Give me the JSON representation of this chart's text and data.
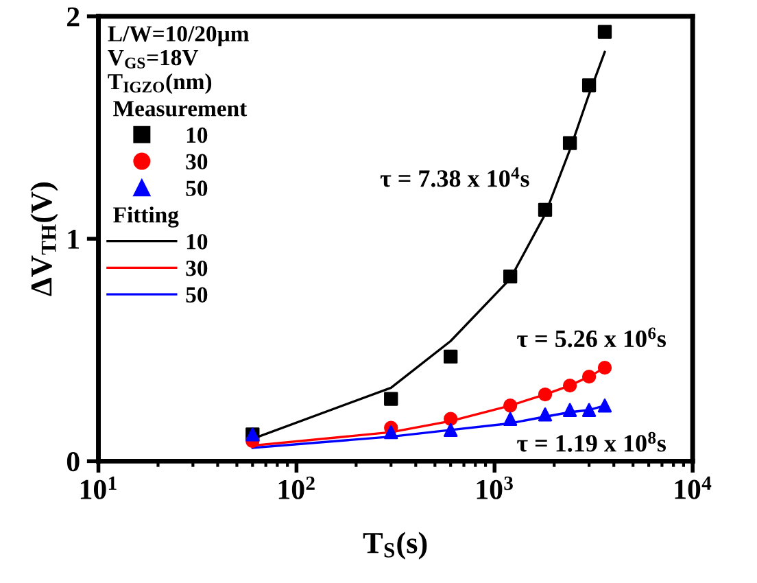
{
  "chart_data": {
    "type": "scatter",
    "xlabel": "T$_{S}$(s)",
    "ylabel": "ΔV$_{TH}$(V)",
    "log": "x",
    "xlim": [
      10,
      10000
    ],
    "xticks": [
      {
        "value": 10,
        "label": "10$^{1}$"
      },
      {
        "value": 100,
        "label": "10$^{2}$"
      },
      {
        "value": 1000,
        "label": "10$^{3}$"
      },
      {
        "value": 10000,
        "label": "10$^{4}$"
      }
    ],
    "ylim": [
      0,
      2
    ],
    "yticks": [
      0,
      1,
      2
    ],
    "grid": false,
    "legend": "top left",
    "legend_title": "T$_{IGZO}$(nm)",
    "x": [
      60,
      300,
      600,
      1200,
      1800,
      2400,
      3000,
      3600
    ],
    "series": [
      {
        "name": "10",
        "marker": "square",
        "color": "#000000",
        "values": [
          0.12,
          0.28,
          0.47,
          0.83,
          1.13,
          1.43,
          1.69,
          1.93
        ]
      },
      {
        "name": "30",
        "marker": "circle",
        "color": "#ff0000",
        "values": [
          0.09,
          0.15,
          0.19,
          0.25,
          0.3,
          0.34,
          0.38,
          0.42
        ]
      },
      {
        "name": "50",
        "marker": "triangle",
        "color": "#0000ff",
        "values": [
          0.12,
          0.13,
          0.14,
          0.19,
          0.21,
          0.23,
          0.23,
          0.25
        ]
      },
      {
        "name": "10",
        "type": "line",
        "line_style": "solid",
        "color": "#000000",
        "values": [
          0.1,
          0.33,
          0.54,
          0.82,
          1.11,
          1.4,
          1.65,
          1.84
        ]
      },
      {
        "name": "30",
        "type": "line",
        "line_style": "solid",
        "color": "#ff0000",
        "values": [
          0.07,
          0.13,
          0.18,
          0.25,
          0.3,
          0.34,
          0.38,
          0.42
        ]
      },
      {
        "name": "50",
        "type": "line",
        "line_style": "solid",
        "color": "#0000ff",
        "values": [
          0.06,
          0.11,
          0.14,
          0.17,
          0.2,
          0.22,
          0.23,
          0.25
        ]
      }
    ],
    "annotations": [
      "L/W=10/20µm",
      "V$_{GS}$=18V",
      "Measurement",
      "Fitting",
      "τ = 7.38 x 10$^{4}$s",
      "τ = 5.26 x 10$^{6}$s",
      "τ = 1.19 x 10$^{8}$s"
    ]
  }
}
